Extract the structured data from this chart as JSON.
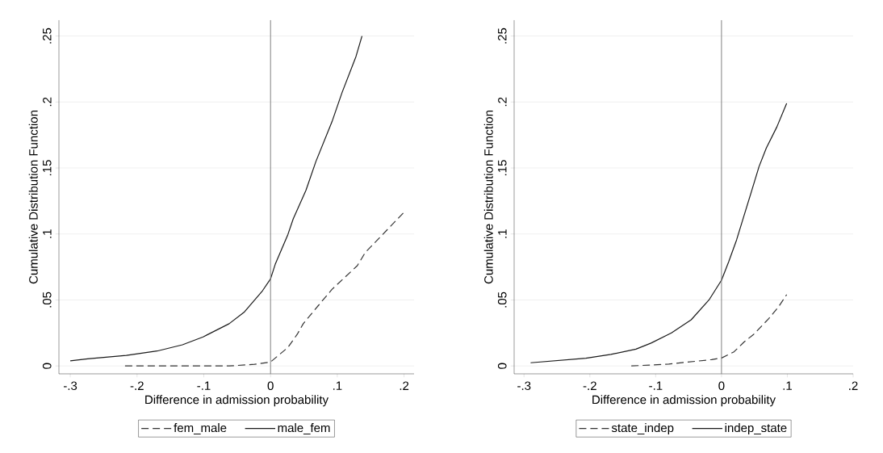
{
  "chart_data": [
    {
      "type": "line",
      "xlabel": "Difference in admission probability",
      "ylabel": "Cumulative Distribution Function",
      "xlim": [
        -0.317,
        0.215
      ],
      "ylim": [
        -0.006,
        0.262
      ],
      "xticks": [
        {
          "value": -0.3,
          "label": "-.3"
        },
        {
          "value": -0.2,
          "label": "-.2"
        },
        {
          "value": -0.1,
          "label": "-.1"
        },
        0,
        {
          "value": 0.1,
          "label": ".1"
        },
        {
          "value": 0.2,
          "label": ".2"
        }
      ],
      "yticks": [
        0,
        {
          "value": 0.05,
          "label": ".05"
        },
        {
          "value": 0.1,
          "label": ".1"
        },
        {
          "value": 0.15,
          "label": ".15"
        },
        {
          "value": 0.2,
          "label": ".2"
        },
        {
          "value": 0.25,
          "label": ".25"
        }
      ],
      "grid": "y",
      "legend": "bottom",
      "ref_lines": [
        {
          "axis": "x",
          "value": 0,
          "color": "#7f7f7f"
        }
      ],
      "series": [
        {
          "name": "fem_male",
          "color": "#333333",
          "line_style": "dashed",
          "x": [
            -0.218,
            -0.062,
            -0.024,
            0,
            0.026,
            0.04,
            0.049,
            0.072,
            0.092,
            0.13,
            0.142,
            0.168,
            0.199
          ],
          "values": [
            0,
            0,
            0.0012,
            0.003,
            0.014,
            0.024,
            0.032,
            0.046,
            0.058,
            0.076,
            0.086,
            0.0996,
            0.116
          ]
        },
        {
          "name": "male_fem",
          "color": "#1a1a1a",
          "line_style": "solid",
          "x": [
            -0.3,
            -0.274,
            -0.216,
            -0.17,
            -0.132,
            -0.101,
            -0.062,
            -0.039,
            -0.012,
            0,
            0.007,
            0.026,
            0.034,
            0.053,
            0.068,
            0.092,
            0.107,
            0.128,
            0.137
          ],
          "values": [
            0.0038,
            0.0054,
            0.008,
            0.0113,
            0.016,
            0.022,
            0.032,
            0.041,
            0.057,
            0.066,
            0.077,
            0.0996,
            0.1115,
            0.133,
            0.155,
            0.185,
            0.207,
            0.2345,
            0.25
          ]
        }
      ]
    },
    {
      "type": "line",
      "xlabel": "Difference in admission probability",
      "ylabel": "Cumulative Distribution Function",
      "xlim": [
        -0.315,
        0.2
      ],
      "ylim": [
        -0.006,
        0.262
      ],
      "xticks": [
        {
          "value": -0.3,
          "label": "-.3"
        },
        {
          "value": -0.2,
          "label": "-.2"
        },
        {
          "value": -0.1,
          "label": "-.1"
        },
        0,
        {
          "value": 0.1,
          "label": ".1"
        },
        {
          "value": 0.2,
          "label": ".2"
        }
      ],
      "yticks": [
        0,
        {
          "value": 0.05,
          "label": ".05"
        },
        {
          "value": 0.1,
          "label": ".1"
        },
        {
          "value": 0.15,
          "label": ".15"
        },
        {
          "value": 0.2,
          "label": ".2"
        },
        {
          "value": 0.25,
          "label": ".25"
        }
      ],
      "grid": "y",
      "legend": "bottom",
      "ref_lines": [
        {
          "axis": "x",
          "value": 0,
          "color": "#7f7f7f"
        }
      ],
      "series": [
        {
          "name": "state_indep",
          "color": "#333333",
          "line_style": "dashed",
          "x": [
            -0.137,
            -0.08,
            -0.015,
            0,
            0.019,
            0.034,
            0.049,
            0.072,
            0.087,
            0.099
          ],
          "values": [
            0,
            0.0014,
            0.0048,
            0.006,
            0.0107,
            0.018,
            0.024,
            0.036,
            0.045,
            0.054
          ]
        },
        {
          "name": "indep_state",
          "color": "#1a1a1a",
          "line_style": "solid",
          "x": [
            -0.29,
            -0.206,
            -0.168,
            -0.13,
            -0.107,
            -0.076,
            -0.046,
            -0.019,
            0,
            0.011,
            0.023,
            0.034,
            0.046,
            0.057,
            0.068,
            0.084,
            0.099
          ],
          "values": [
            0.0024,
            0.0058,
            0.0087,
            0.0127,
            0.0173,
            0.025,
            0.035,
            0.05,
            0.065,
            0.079,
            0.0956,
            0.1135,
            0.133,
            0.151,
            0.165,
            0.181,
            0.199
          ]
        }
      ]
    }
  ]
}
